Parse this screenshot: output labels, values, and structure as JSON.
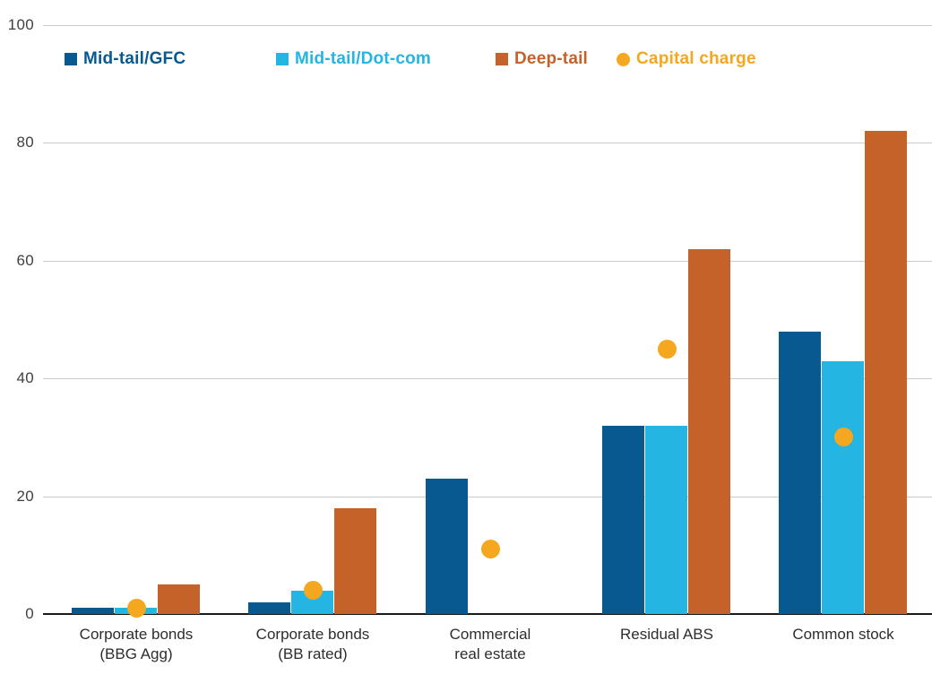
{
  "chart_data": {
    "type": "bar",
    "title": "",
    "xlabel": "",
    "ylabel": "",
    "ylim": [
      0,
      100
    ],
    "yticks": [
      0,
      20,
      40,
      60,
      80,
      100
    ],
    "ytick_labels": [
      "0",
      "20",
      "40",
      "60",
      "80",
      "100"
    ],
    "grid": "horizontal",
    "legend_position": "top",
    "categories": [
      "Corporate bonds (BBG Agg)",
      "Corporate bonds (BB rated)",
      "Commercial real estate",
      "Residual ABS",
      "Common stock"
    ],
    "category_lines": [
      [
        "Corporate bonds",
        "(BBG Agg)"
      ],
      [
        "Corporate bonds",
        "(BB rated)"
      ],
      [
        "Commercial",
        "real estate"
      ],
      [
        "Residual ABS"
      ],
      [
        "Common stock"
      ]
    ],
    "series": [
      {
        "name": "Mid-tail/GFC",
        "color": "#07598f",
        "values": [
          1,
          2,
          23,
          32,
          48
        ]
      },
      {
        "name": "Mid-tail/Dot-com",
        "color": "#24b5e3",
        "values": [
          1,
          4,
          null,
          32,
          43
        ]
      },
      {
        "name": "Deep-tail",
        "color": "#c4622a",
        "values": [
          5,
          18,
          null,
          62,
          82
        ]
      }
    ],
    "markers": {
      "name": "Capital charge",
      "color": "#f5a71f",
      "shape": "circle",
      "values": [
        1,
        4,
        11,
        45,
        30
      ]
    },
    "colors": {
      "gridline": "#cccccc",
      "axis_line": "#1a1a1a",
      "tick_label": "#404040",
      "category_label": "#2d2d2d"
    }
  }
}
